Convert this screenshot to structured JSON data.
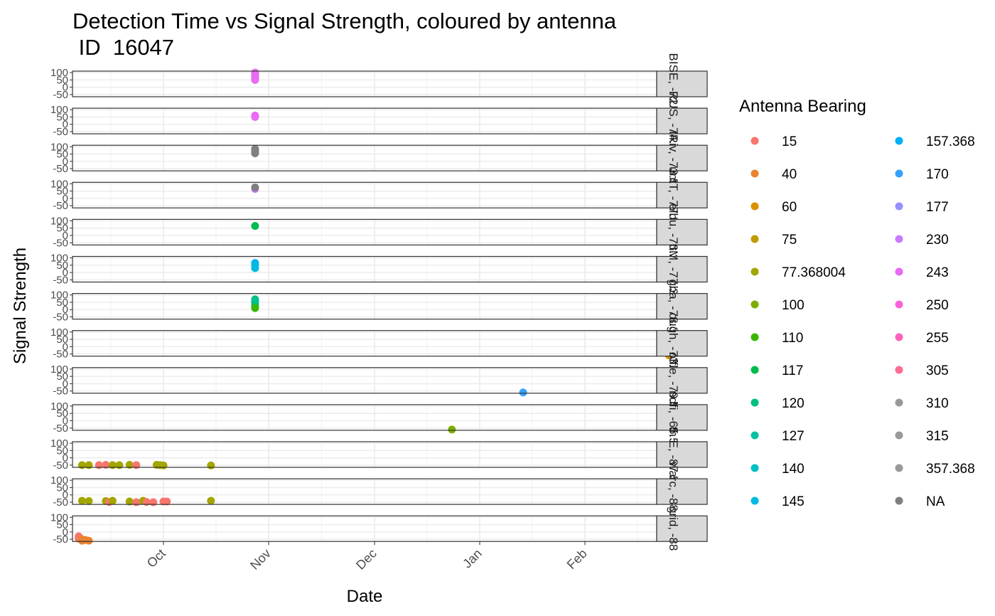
{
  "chart_data": {
    "type": "scatter",
    "title_lines": [
      "Detection Time vs Signal Strength, coloured by antenna",
      " ID  16047"
    ],
    "xlabel": "Date",
    "ylabel": "Signal Strength",
    "x_ticks": [
      "Oct",
      "Nov",
      "Dec",
      "Jan",
      "Feb"
    ],
    "y_ticks": [
      "100",
      "50",
      "0",
      "-50"
    ],
    "y_tick_values": [
      100,
      50,
      0,
      -50
    ],
    "ylim": [
      -65,
      110
    ],
    "grid": true,
    "legend": {
      "title": "Antenna Bearing",
      "position": "right",
      "entries": [
        {
          "label": "15",
          "color": "#F8766D"
        },
        {
          "label": "40",
          "color": "#EA8331"
        },
        {
          "label": "60",
          "color": "#D89000"
        },
        {
          "label": "75",
          "color": "#C09B00"
        },
        {
          "label": "77.368004",
          "color": "#A3A500"
        },
        {
          "label": "100",
          "color": "#7CAE00"
        },
        {
          "label": "110",
          "color": "#39B600"
        },
        {
          "label": "117",
          "color": "#00BB4E"
        },
        {
          "label": "120",
          "color": "#00BF7D"
        },
        {
          "label": "127",
          "color": "#00C1A3"
        },
        {
          "label": "140",
          "color": "#00BFC4"
        },
        {
          "label": "145",
          "color": "#00BAE0"
        },
        {
          "label": "157.368",
          "color": "#00B0F6"
        },
        {
          "label": "170",
          "color": "#35A2FF"
        },
        {
          "label": "177",
          "color": "#9590FF"
        },
        {
          "label": "230",
          "color": "#C77CFF"
        },
        {
          "label": "243",
          "color": "#E76BF3"
        },
        {
          "label": "250",
          "color": "#FA62DB"
        },
        {
          "label": "255",
          "color": "#FF62BC"
        },
        {
          "label": "305",
          "color": "#FF6C91"
        },
        {
          "label": "310",
          "color": "#999999"
        },
        {
          "label": "315",
          "color": "#999999"
        },
        {
          "label": "357.368",
          "color": "#999999"
        },
        {
          "label": "NA",
          "color": "#7F7F7F"
        }
      ]
    },
    "panels": [
      {
        "strip": "BISE, -72.1",
        "points": [
          {
            "day": 55,
            "y": 100,
            "c": "#E76BF3"
          },
          {
            "day": 55,
            "y": 90,
            "c": "#E76BF3"
          },
          {
            "day": 55,
            "y": 80,
            "c": "#E76BF3"
          },
          {
            "day": 55,
            "y": 70,
            "c": "#E76BF3"
          },
          {
            "day": 55,
            "y": 60,
            "c": "#E76BF3"
          },
          {
            "day": 55,
            "y": 50,
            "c": "#E76BF3"
          }
        ]
      },
      {
        "strip": "RUS, -74.2",
        "points": [
          {
            "day": 55,
            "y": 60,
            "c": "#E76BF3"
          },
          {
            "day": 55,
            "y": 50,
            "c": "#E76BF3"
          }
        ]
      },
      {
        "strip": "tRiv, -73.5",
        "points": [
          {
            "day": 55,
            "y": 85,
            "c": "#7F7F7F"
          },
          {
            "day": 55,
            "y": 75,
            "c": "#7F7F7F"
          },
          {
            "day": 55,
            "y": 65,
            "c": "#7F7F7F"
          },
          {
            "day": 55,
            "y": 55,
            "c": "#7F7F7F"
          }
        ]
      },
      {
        "strip": "untT, -77.5",
        "points": [
          {
            "day": 55,
            "y": 65,
            "c": "#C77CFF"
          },
          {
            "day": 55,
            "y": 75,
            "c": "#7F7F7F"
          }
        ]
      },
      {
        "strip": "elbu, -76.2",
        "points": [
          {
            "day": 55,
            "y": 65,
            "c": "#00BB4E"
          }
        ]
      },
      {
        "strip": "ttM, -77.3",
        "points": [
          {
            "day": 55,
            "y": 65,
            "c": "#00B0F6"
          },
          {
            "day": 55,
            "y": 50,
            "c": "#00BAE0"
          },
          {
            "day": 55,
            "y": 30,
            "c": "#00BAE0"
          }
        ]
      },
      {
        "strip": "gba, -78.3",
        "points": [
          {
            "day": 55,
            "y": 70,
            "c": "#00BF7D"
          },
          {
            "day": 55,
            "y": 55,
            "c": "#00C1A3"
          },
          {
            "day": 55,
            "y": 40,
            "c": "#00BF7D"
          },
          {
            "day": 55,
            "y": 25,
            "c": "#00BF7D"
          },
          {
            "day": 55,
            "y": 10,
            "c": "#39B600"
          }
        ]
      },
      {
        "strip": "ough, -73.3",
        "points": [
          {
            "day": 177,
            "y": -60,
            "c": "#D89000"
          }
        ]
      },
      {
        "strip": "offle, -79.5",
        "points": [
          {
            "day": 134,
            "y": -60,
            "c": "#35A2FF"
          }
        ]
      },
      {
        "strip": "ndfi, -65.5",
        "points": [
          {
            "day": 113,
            "y": -60,
            "c": "#7CAE00"
          }
        ]
      },
      {
        "strip": "th E, -87.5",
        "points": [
          {
            "day": 4,
            "y": -50,
            "c": "#A3A500"
          },
          {
            "day": 6,
            "y": -50,
            "c": "#A3A500"
          },
          {
            "day": 9,
            "y": -50,
            "c": "#F8766D"
          },
          {
            "day": 11,
            "y": -48,
            "c": "#F8766D"
          },
          {
            "day": 13,
            "y": -50,
            "c": "#A3A500"
          },
          {
            "day": 15,
            "y": -50,
            "c": "#A3A500"
          },
          {
            "day": 18,
            "y": -48,
            "c": "#A3A500"
          },
          {
            "day": 20,
            "y": -50,
            "c": "#F8766D"
          },
          {
            "day": 26,
            "y": -48,
            "c": "#A3A500"
          },
          {
            "day": 27,
            "y": -50,
            "c": "#A3A500"
          },
          {
            "day": 28,
            "y": -52,
            "c": "#A3A500"
          },
          {
            "day": 42,
            "y": -52,
            "c": "#A3A500"
          }
        ]
      },
      {
        "strip": "warc, -88.3",
        "points": [
          {
            "day": 4,
            "y": -40,
            "c": "#A3A500"
          },
          {
            "day": 6,
            "y": -42,
            "c": "#A3A500"
          },
          {
            "day": 11,
            "y": -42,
            "c": "#A3A500"
          },
          {
            "day": 12,
            "y": -48,
            "c": "#F8766D"
          },
          {
            "day": 13,
            "y": -40,
            "c": "#A3A500"
          },
          {
            "day": 18,
            "y": -45,
            "c": "#A3A500"
          },
          {
            "day": 20,
            "y": -50,
            "c": "#F8766D"
          },
          {
            "day": 22,
            "y": -40,
            "c": "#A3A500"
          },
          {
            "day": 23,
            "y": -48,
            "c": "#F8766D"
          },
          {
            "day": 25,
            "y": -50,
            "c": "#F8766D"
          },
          {
            "day": 28,
            "y": -45,
            "c": "#F8766D"
          },
          {
            "day": 29,
            "y": -45,
            "c": "#F8766D"
          },
          {
            "day": 42,
            "y": -40,
            "c": "#A3A500"
          }
        ]
      },
      {
        "strip": "grid, -88",
        "points": [
          {
            "day": 3,
            "y": -30,
            "c": "#F8766D"
          },
          {
            "day": 3,
            "y": -45,
            "c": "#F8766D"
          },
          {
            "day": 4,
            "y": -60,
            "c": "#EA8331"
          },
          {
            "day": 4,
            "y": -50,
            "c": "#EA8331"
          },
          {
            "day": 5,
            "y": -55,
            "c": "#EA8331"
          },
          {
            "day": 6,
            "y": -60,
            "c": "#EA8331"
          }
        ]
      }
    ]
  }
}
